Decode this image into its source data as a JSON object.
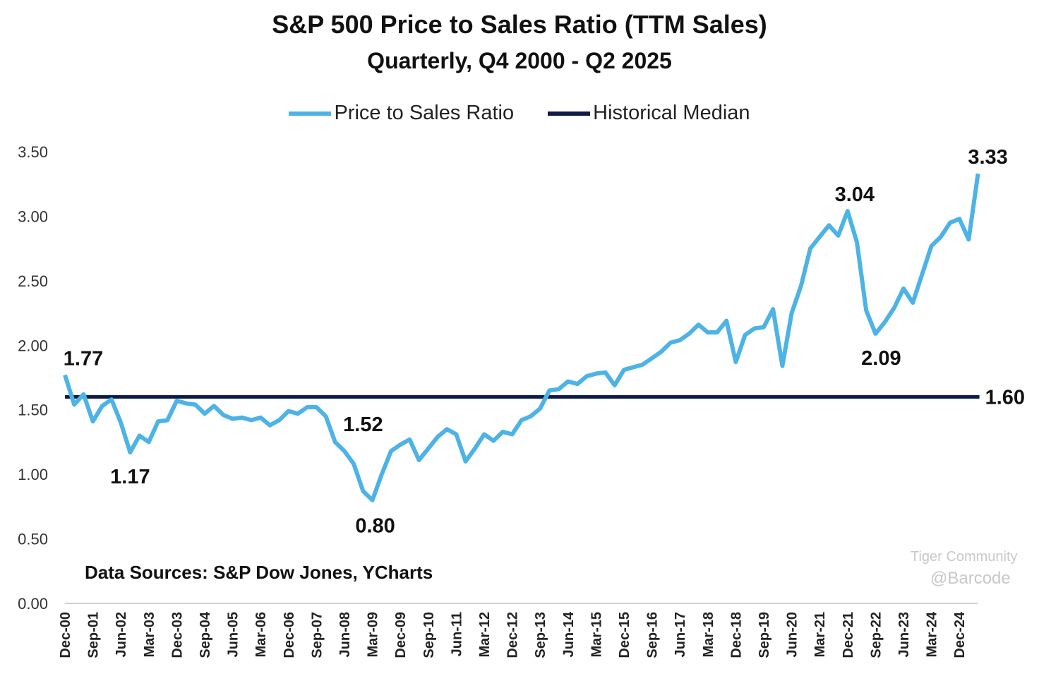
{
  "chart_data": {
    "type": "line",
    "title": "S&P 500 Price to Sales Ratio (TTM Sales)",
    "subtitle": "Quarterly, Q4 2000 - Q2 2025",
    "ylim": [
      0,
      3.5
    ],
    "yticks": [
      "0.00",
      "0.50",
      "1.00",
      "1.50",
      "2.00",
      "2.50",
      "3.00",
      "3.50"
    ],
    "xtick_labels": [
      "Dec-00",
      "Sep-01",
      "Jun-02",
      "Mar-03",
      "Dec-03",
      "Sep-04",
      "Jun-05",
      "Mar-06",
      "Dec-06",
      "Sep-07",
      "Jun-08",
      "Mar-09",
      "Dec-09",
      "Sep-10",
      "Jun-11",
      "Mar-12",
      "Dec-12",
      "Sep-13",
      "Jun-14",
      "Mar-15",
      "Dec-15",
      "Sep-16",
      "Jun-17",
      "Mar-18",
      "Dec-18",
      "Sep-19",
      "Jun-20",
      "Mar-21",
      "Dec-21",
      "Sep-22",
      "Jun-23",
      "Mar-24",
      "Dec-24"
    ],
    "grid": false,
    "legend_placement": "top",
    "series": [
      {
        "name": "Price to Sales Ratio",
        "color": "#4db3e6",
        "values": [
          1.77,
          1.54,
          1.62,
          1.41,
          1.53,
          1.58,
          1.4,
          1.17,
          1.3,
          1.25,
          1.41,
          1.42,
          1.57,
          1.55,
          1.54,
          1.47,
          1.53,
          1.46,
          1.43,
          1.44,
          1.42,
          1.44,
          1.38,
          1.42,
          1.49,
          1.47,
          1.52,
          1.52,
          1.45,
          1.25,
          1.18,
          1.08,
          0.87,
          0.8,
          1.0,
          1.18,
          1.23,
          1.27,
          1.11,
          1.2,
          1.29,
          1.35,
          1.31,
          1.1,
          1.2,
          1.31,
          1.26,
          1.33,
          1.31,
          1.42,
          1.45,
          1.51,
          1.65,
          1.66,
          1.72,
          1.7,
          1.76,
          1.78,
          1.79,
          1.69,
          1.81,
          1.83,
          1.85,
          1.9,
          1.95,
          2.02,
          2.04,
          2.09,
          2.16,
          2.1,
          2.1,
          2.19,
          1.87,
          2.08,
          2.13,
          2.14,
          2.28,
          1.84,
          2.25,
          2.46,
          2.75,
          2.84,
          2.93,
          2.85,
          3.04,
          2.8,
          2.27,
          2.09,
          2.18,
          2.29,
          2.44,
          2.33,
          2.55,
          2.77,
          2.84,
          2.95,
          2.98,
          2.82,
          3.33
        ]
      },
      {
        "name": "Historical Median",
        "color": "#0d1b45",
        "value": 1.6
      }
    ],
    "annotations": [
      {
        "index": 0,
        "text": "1.77"
      },
      {
        "index": 7,
        "text": "1.17"
      },
      {
        "index": 27,
        "text": "1.52"
      },
      {
        "index": 33,
        "text": "0.80"
      },
      {
        "index": 84,
        "text": "3.04"
      },
      {
        "index": 87,
        "text": "2.09"
      },
      {
        "index": 98,
        "text": "3.33"
      }
    ],
    "median_label": "1.60",
    "source_note": "Data Sources: S&P Dow Jones, YCharts"
  },
  "watermark": {
    "line1": "Tiger Community",
    "line2": "@Barcode"
  }
}
